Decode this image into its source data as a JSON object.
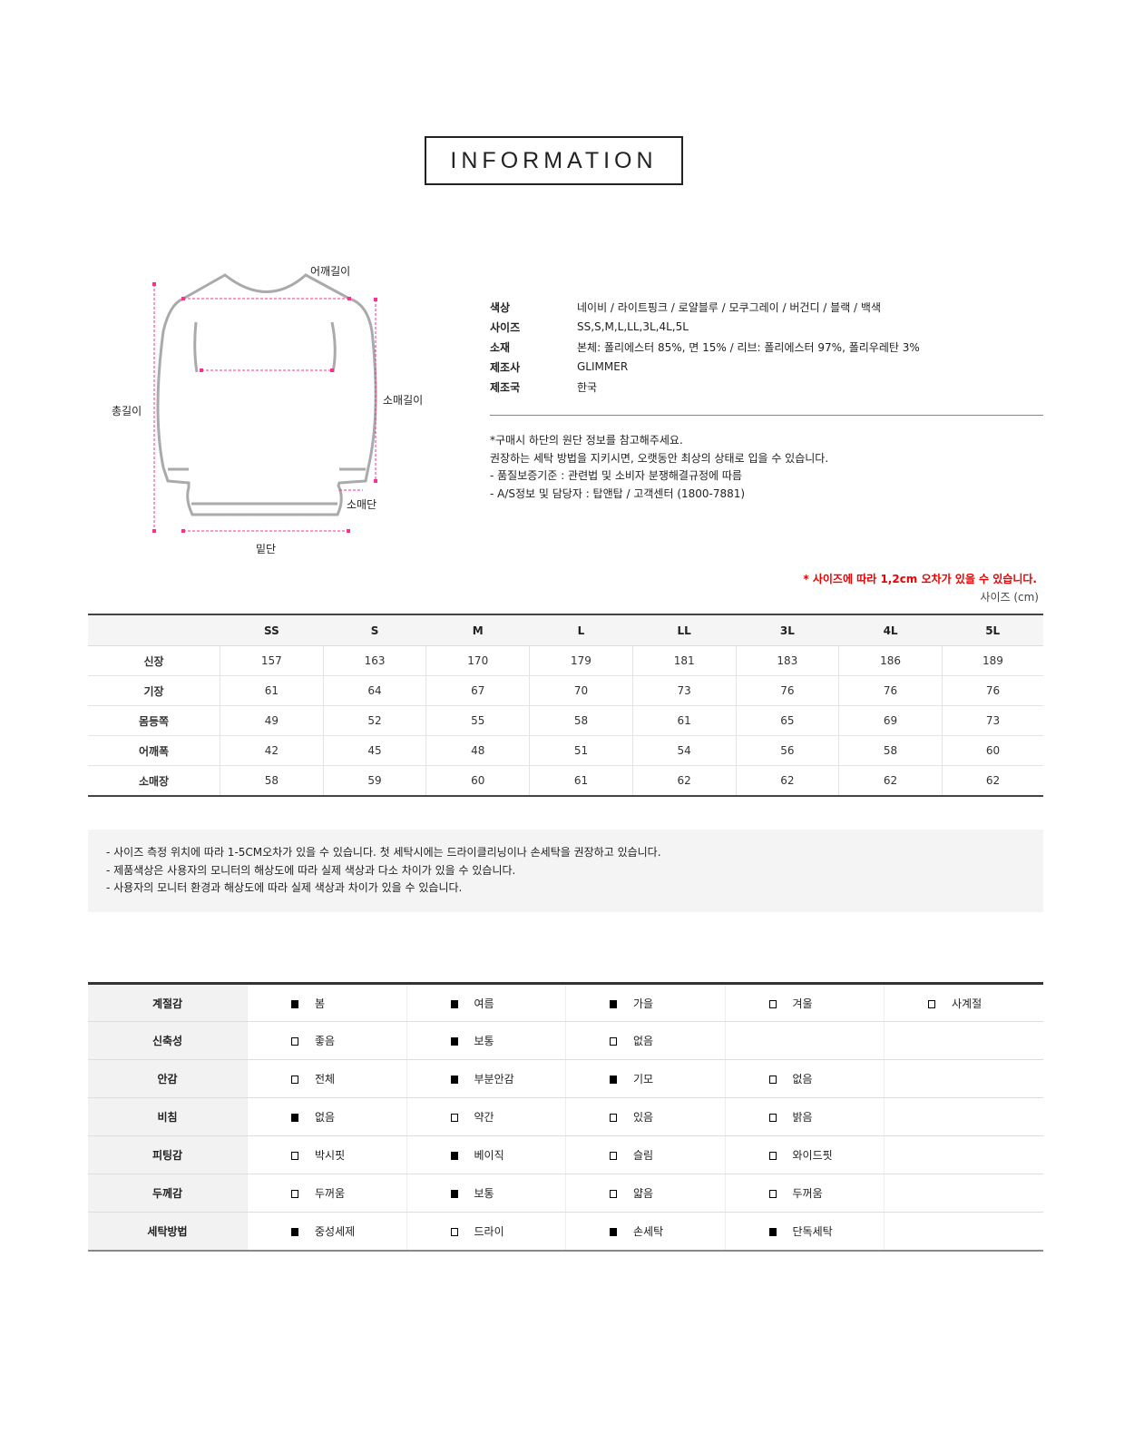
{
  "title": "INFORMATION",
  "diagram_labels": {
    "shoulder": "어깨길이",
    "total_length": "총길이",
    "sleeve_length": "소매길이",
    "cuff": "소매단",
    "hem": "밑단"
  },
  "specs": [
    {
      "key": "색상",
      "value": "네이비 / 라이트핑크 / 로얄블루 / 모쿠그레이 / 버건디 / 블랙 / 백색"
    },
    {
      "key": "사이즈",
      "value": "SS,S,M,L,LL,3L,4L,5L"
    },
    {
      "key": "소재",
      "value": "본체: 폴리에스터 85%, 면 15% / 리브: 폴리에스터 97%, 폴리우레탄 3%"
    },
    {
      "key": "제조사",
      "value": "GLIMMER"
    },
    {
      "key": "제조국",
      "value": "한국"
    }
  ],
  "notes": [
    "*구매시 하단의 원단 정보를 참고해주세요.",
    "권장하는 세탁 방법을 지키시면, 오랫동안 최상의 상태로 입을 수 있습니다.",
    "- 품질보증기준 : 관련법 및 소비자 분쟁해결규정에 따름",
    "- A/S정보 및 담당자 : 탑앤탑 / 고객센터 (1800-7881)"
  ],
  "size_warning": "* 사이즈에 따라 1,2cm 오차가 있을 수 있습니다.",
  "size_unit": "사이즈 (cm)",
  "size_table": {
    "headers": [
      "SS",
      "S",
      "M",
      "L",
      "LL",
      "3L",
      "4L",
      "5L"
    ],
    "rows": [
      {
        "label": "신장",
        "values": [
          "157",
          "163",
          "170",
          "179",
          "181",
          "183",
          "186",
          "189"
        ]
      },
      {
        "label": "기장",
        "values": [
          "61",
          "64",
          "67",
          "70",
          "73",
          "76",
          "76",
          "76"
        ]
      },
      {
        "label": "몸등쪽",
        "values": [
          "49",
          "52",
          "55",
          "58",
          "61",
          "65",
          "69",
          "73"
        ]
      },
      {
        "label": "어깨폭",
        "values": [
          "42",
          "45",
          "48",
          "51",
          "54",
          "56",
          "58",
          "60"
        ]
      },
      {
        "label": "소매장",
        "values": [
          "58",
          "59",
          "60",
          "61",
          "62",
          "62",
          "62",
          "62"
        ]
      }
    ]
  },
  "disclaimers": [
    "- 사이즈 측정 위치에 따라 1-5CM오차가 있을 수 있습니다. 첫 세탁시에는 드라이클리닝이나 손세탁을 권장하고 있습니다.",
    "- 제품색상은 사용자의 모니터의 해상도에 따라 실제 색상과 다소 차이가 있을 수 있습니다.",
    "- 사용자의 모니터 환경과 해상도에 따라 실제 색상과 차이가 있을 수 있습니다."
  ],
  "attributes": [
    {
      "label": "계절감",
      "options": [
        {
          "text": "봄",
          "checked": true
        },
        {
          "text": "여름",
          "checked": true
        },
        {
          "text": "가을",
          "checked": true
        },
        {
          "text": "겨울",
          "checked": false
        },
        {
          "text": "사계절",
          "checked": false
        }
      ]
    },
    {
      "label": "신축성",
      "options": [
        {
          "text": "좋음",
          "checked": false
        },
        {
          "text": "보통",
          "checked": true
        },
        {
          "text": "없음",
          "checked": false
        }
      ]
    },
    {
      "label": "안감",
      "options": [
        {
          "text": "전체",
          "checked": false
        },
        {
          "text": "부분안감",
          "checked": true
        },
        {
          "text": "기모",
          "checked": true
        },
        {
          "text": "없음",
          "checked": false
        }
      ]
    },
    {
      "label": "비침",
      "options": [
        {
          "text": "없음",
          "checked": true
        },
        {
          "text": "약간",
          "checked": false
        },
        {
          "text": "있음",
          "checked": false
        },
        {
          "text": "밝음",
          "checked": false
        }
      ]
    },
    {
      "label": "피팅감",
      "options": [
        {
          "text": "박시핏",
          "checked": false
        },
        {
          "text": "베이직",
          "checked": true
        },
        {
          "text": "슬림",
          "checked": false
        },
        {
          "text": "와이드핏",
          "checked": false
        }
      ]
    },
    {
      "label": "두께감",
      "options": [
        {
          "text": "두꺼움",
          "checked": false
        },
        {
          "text": "보통",
          "checked": true
        },
        {
          "text": "얇음",
          "checked": false
        },
        {
          "text": "두꺼움",
          "checked": false
        }
      ]
    },
    {
      "label": "세탁방법",
      "options": [
        {
          "text": "중성세제",
          "checked": true
        },
        {
          "text": "드라이",
          "checked": false
        },
        {
          "text": "손세탁",
          "checked": true
        },
        {
          "text": "단독세탁",
          "checked": true
        }
      ]
    }
  ],
  "colors": {
    "measure": "#ff2d8c",
    "warning": "#e00000"
  }
}
